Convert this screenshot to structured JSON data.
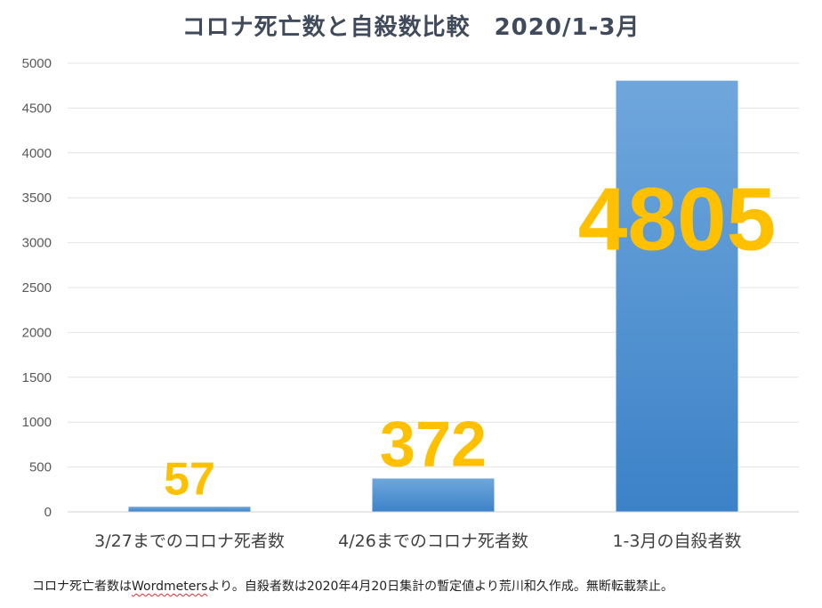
{
  "footnote": {
    "prefix": "コロナ死亡者数は",
    "source": "Wordmeters",
    "suffix": "より。自殺者数は2020年4月20日集計の暫定値より荒川和久作成。無断転載禁止。"
  },
  "colors": {
    "bar_top": "#6fa7dc",
    "bar_bottom": "#3c82c8",
    "data_label": "#ffc000",
    "grid": "#e4e4e4"
  },
  "chart_data": {
    "type": "bar",
    "title": "コロナ死亡数と自殺数比較　2020/1-3月",
    "categories": [
      "3/27までのコロナ死者数",
      "4/26までのコロナ死者数",
      "1-3月の自殺者数"
    ],
    "values": [
      57,
      372,
      4805
    ],
    "data_labels": [
      "57",
      "372",
      "4805"
    ],
    "ylim": [
      0,
      5000
    ],
    "yticks": [
      0,
      500,
      1000,
      1500,
      2000,
      2500,
      3000,
      3500,
      4000,
      4500,
      5000
    ],
    "grid": true,
    "legend": "none",
    "xlabel": "",
    "ylabel": ""
  }
}
